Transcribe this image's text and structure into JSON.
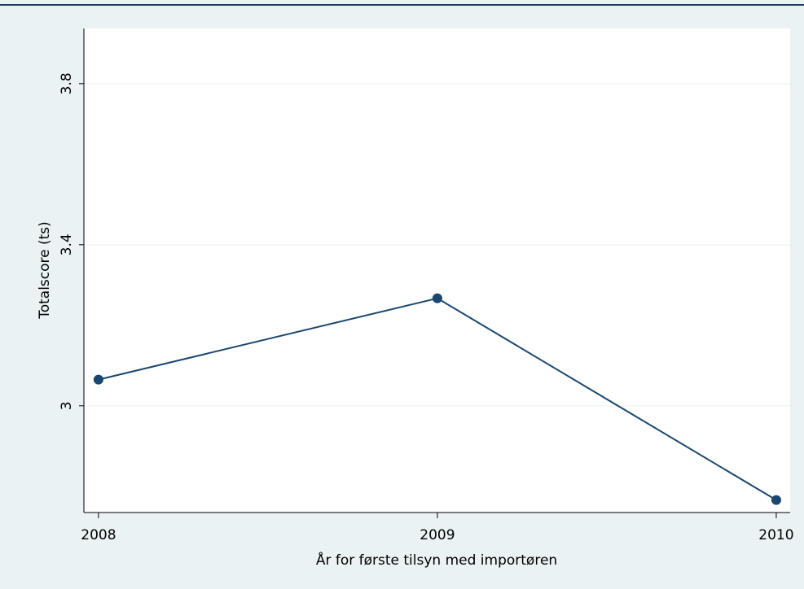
{
  "chart_data": {
    "type": "line",
    "x": [
      2008,
      2009,
      2010
    ],
    "series": [
      {
        "name": "Totalscore (ts)",
        "color": "#1a476f",
        "values": [
          3.065,
          3.267,
          2.766
        ]
      }
    ],
    "xlabel": "År for første tilsyn med importøren",
    "ylabel": "Totalscore (ts)",
    "xlim": [
      2007.957,
      2010.041
    ],
    "xticks": [
      2008,
      2009,
      2010
    ],
    "ylim": [
      2.735,
      3.937
    ],
    "yticks": [
      {
        "value": 3,
        "label": "3"
      },
      3.4,
      3.8
    ],
    "grid": true
  }
}
